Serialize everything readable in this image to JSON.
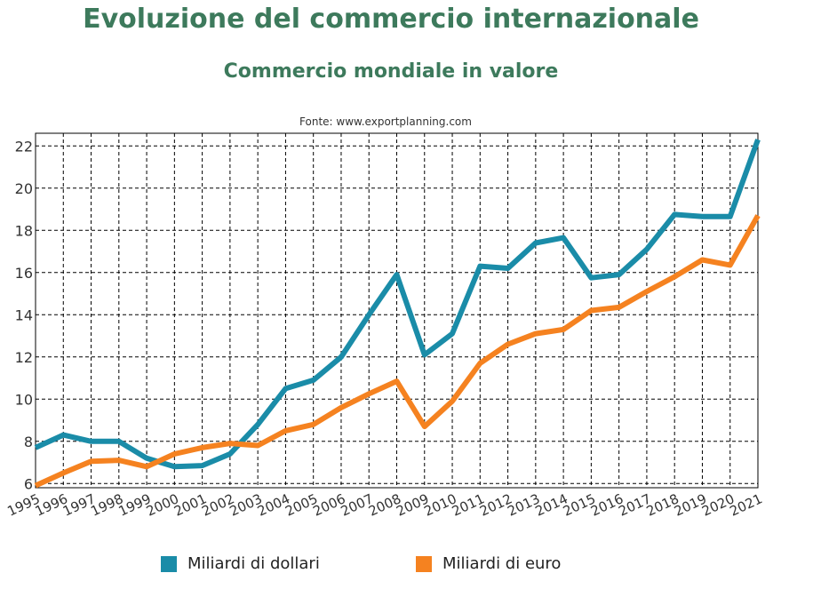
{
  "header": {
    "title": "Evoluzione del commercio internazionale",
    "subtitle": "Commercio mondiale in valore",
    "source": "Fonte: www.exportplanning.com"
  },
  "colors": {
    "title": "#3d7a5c",
    "series_dollars": "#1a8ca8",
    "series_euro": "#f58220",
    "grid": "#000000"
  },
  "chart_data": {
    "type": "line",
    "title": "Commercio mondiale in valore",
    "x": [
      "1995",
      "1996",
      "1997",
      "1998",
      "1999",
      "2000",
      "2001",
      "2002",
      "2003",
      "2004",
      "2005",
      "2006",
      "2007",
      "2008",
      "2009",
      "2010",
      "2011",
      "2012",
      "2013",
      "2014",
      "2015",
      "2016",
      "2017",
      "2018",
      "2019",
      "2020",
      "2021"
    ],
    "y_ticks": [
      6,
      8,
      10,
      12,
      14,
      16,
      18,
      20,
      22
    ],
    "ylim": [
      5.8,
      22.6
    ],
    "grid": true,
    "legend_position": "bottom",
    "series": [
      {
        "name": "Miliardi di dollari",
        "color": "#1a8ca8",
        "values": [
          7.7,
          8.3,
          8.0,
          8.0,
          7.2,
          6.8,
          6.85,
          7.4,
          8.8,
          10.5,
          10.9,
          12.0,
          14.0,
          15.9,
          12.1,
          13.1,
          16.3,
          16.2,
          17.4,
          17.65,
          15.75,
          15.9,
          17.1,
          18.75,
          18.65,
          18.65,
          22.3
        ]
      },
      {
        "name": "Miliardi di euro",
        "color": "#f58220",
        "values": [
          5.9,
          6.5,
          7.05,
          7.1,
          6.8,
          7.4,
          7.7,
          7.9,
          7.8,
          8.5,
          8.8,
          9.6,
          10.25,
          10.85,
          8.7,
          9.9,
          11.7,
          12.6,
          13.1,
          13.3,
          14.2,
          14.35,
          15.1,
          15.8,
          16.6,
          16.35,
          18.7
        ]
      }
    ]
  }
}
